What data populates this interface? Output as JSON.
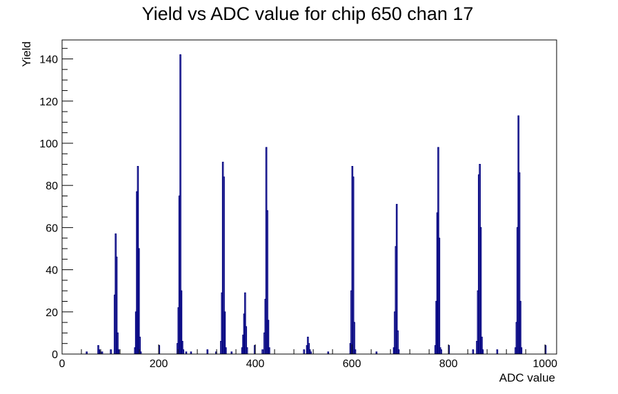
{
  "chart_data": {
    "type": "bar",
    "title": "Yield vs ADC value for chip 650 chan 17",
    "xlabel": "ADC value",
    "ylabel": "Yield",
    "xlim": [
      0,
      1024
    ],
    "ylim": [
      0,
      149
    ],
    "x_ticks": [
      0,
      200,
      400,
      600,
      800,
      1000
    ],
    "y_ticks": [
      0,
      20,
      40,
      60,
      80,
      100,
      120,
      140
    ],
    "grid": false,
    "legend": "none",
    "line_color": "#000080",
    "bins": [
      {
        "x": 50,
        "y": 1
      },
      {
        "x": 74,
        "y": 4
      },
      {
        "x": 76,
        "y": 2
      },
      {
        "x": 78,
        "y": 1
      },
      {
        "x": 82,
        "y": 1
      },
      {
        "x": 100,
        "y": 2
      },
      {
        "x": 108,
        "y": 28
      },
      {
        "x": 110,
        "y": 57
      },
      {
        "x": 112,
        "y": 46
      },
      {
        "x": 114,
        "y": 10
      },
      {
        "x": 116,
        "y": 2
      },
      {
        "x": 150,
        "y": 3
      },
      {
        "x": 152,
        "y": 20
      },
      {
        "x": 154,
        "y": 77
      },
      {
        "x": 156,
        "y": 89
      },
      {
        "x": 158,
        "y": 50
      },
      {
        "x": 160,
        "y": 8
      },
      {
        "x": 162,
        "y": 1
      },
      {
        "x": 200,
        "y": 4
      },
      {
        "x": 238,
        "y": 5
      },
      {
        "x": 240,
        "y": 22
      },
      {
        "x": 242,
        "y": 75
      },
      {
        "x": 244,
        "y": 142
      },
      {
        "x": 246,
        "y": 30
      },
      {
        "x": 248,
        "y": 6
      },
      {
        "x": 250,
        "y": 2
      },
      {
        "x": 256,
        "y": 1
      },
      {
        "x": 266,
        "y": 1
      },
      {
        "x": 300,
        "y": 2
      },
      {
        "x": 318,
        "y": 1
      },
      {
        "x": 328,
        "y": 6
      },
      {
        "x": 330,
        "y": 29
      },
      {
        "x": 332,
        "y": 91
      },
      {
        "x": 334,
        "y": 84
      },
      {
        "x": 336,
        "y": 20
      },
      {
        "x": 338,
        "y": 3
      },
      {
        "x": 350,
        "y": 1
      },
      {
        "x": 372,
        "y": 3
      },
      {
        "x": 374,
        "y": 9
      },
      {
        "x": 376,
        "y": 19
      },
      {
        "x": 378,
        "y": 29
      },
      {
        "x": 380,
        "y": 13
      },
      {
        "x": 382,
        "y": 3
      },
      {
        "x": 398,
        "y": 4
      },
      {
        "x": 414,
        "y": 2
      },
      {
        "x": 418,
        "y": 10
      },
      {
        "x": 420,
        "y": 26
      },
      {
        "x": 422,
        "y": 98
      },
      {
        "x": 424,
        "y": 68
      },
      {
        "x": 426,
        "y": 16
      },
      {
        "x": 428,
        "y": 3
      },
      {
        "x": 500,
        "y": 2
      },
      {
        "x": 506,
        "y": 4
      },
      {
        "x": 508,
        "y": 8
      },
      {
        "x": 510,
        "y": 5
      },
      {
        "x": 512,
        "y": 2
      },
      {
        "x": 514,
        "y": 1
      },
      {
        "x": 550,
        "y": 1
      },
      {
        "x": 596,
        "y": 5
      },
      {
        "x": 598,
        "y": 30
      },
      {
        "x": 600,
        "y": 89
      },
      {
        "x": 602,
        "y": 84
      },
      {
        "x": 604,
        "y": 15
      },
      {
        "x": 606,
        "y": 2
      },
      {
        "x": 650,
        "y": 1
      },
      {
        "x": 686,
        "y": 3
      },
      {
        "x": 688,
        "y": 20
      },
      {
        "x": 690,
        "y": 51
      },
      {
        "x": 692,
        "y": 71
      },
      {
        "x": 694,
        "y": 11
      },
      {
        "x": 696,
        "y": 2
      },
      {
        "x": 772,
        "y": 4
      },
      {
        "x": 774,
        "y": 25
      },
      {
        "x": 776,
        "y": 67
      },
      {
        "x": 778,
        "y": 98
      },
      {
        "x": 780,
        "y": 55
      },
      {
        "x": 782,
        "y": 3
      },
      {
        "x": 784,
        "y": 2
      },
      {
        "x": 800,
        "y": 4
      },
      {
        "x": 850,
        "y": 2
      },
      {
        "x": 858,
        "y": 6
      },
      {
        "x": 860,
        "y": 30
      },
      {
        "x": 862,
        "y": 85
      },
      {
        "x": 864,
        "y": 90
      },
      {
        "x": 866,
        "y": 60
      },
      {
        "x": 868,
        "y": 8
      },
      {
        "x": 870,
        "y": 2
      },
      {
        "x": 900,
        "y": 2
      },
      {
        "x": 938,
        "y": 3
      },
      {
        "x": 940,
        "y": 15
      },
      {
        "x": 942,
        "y": 60
      },
      {
        "x": 944,
        "y": 113
      },
      {
        "x": 946,
        "y": 86
      },
      {
        "x": 948,
        "y": 25
      },
      {
        "x": 950,
        "y": 3
      },
      {
        "x": 1000,
        "y": 4
      }
    ]
  }
}
